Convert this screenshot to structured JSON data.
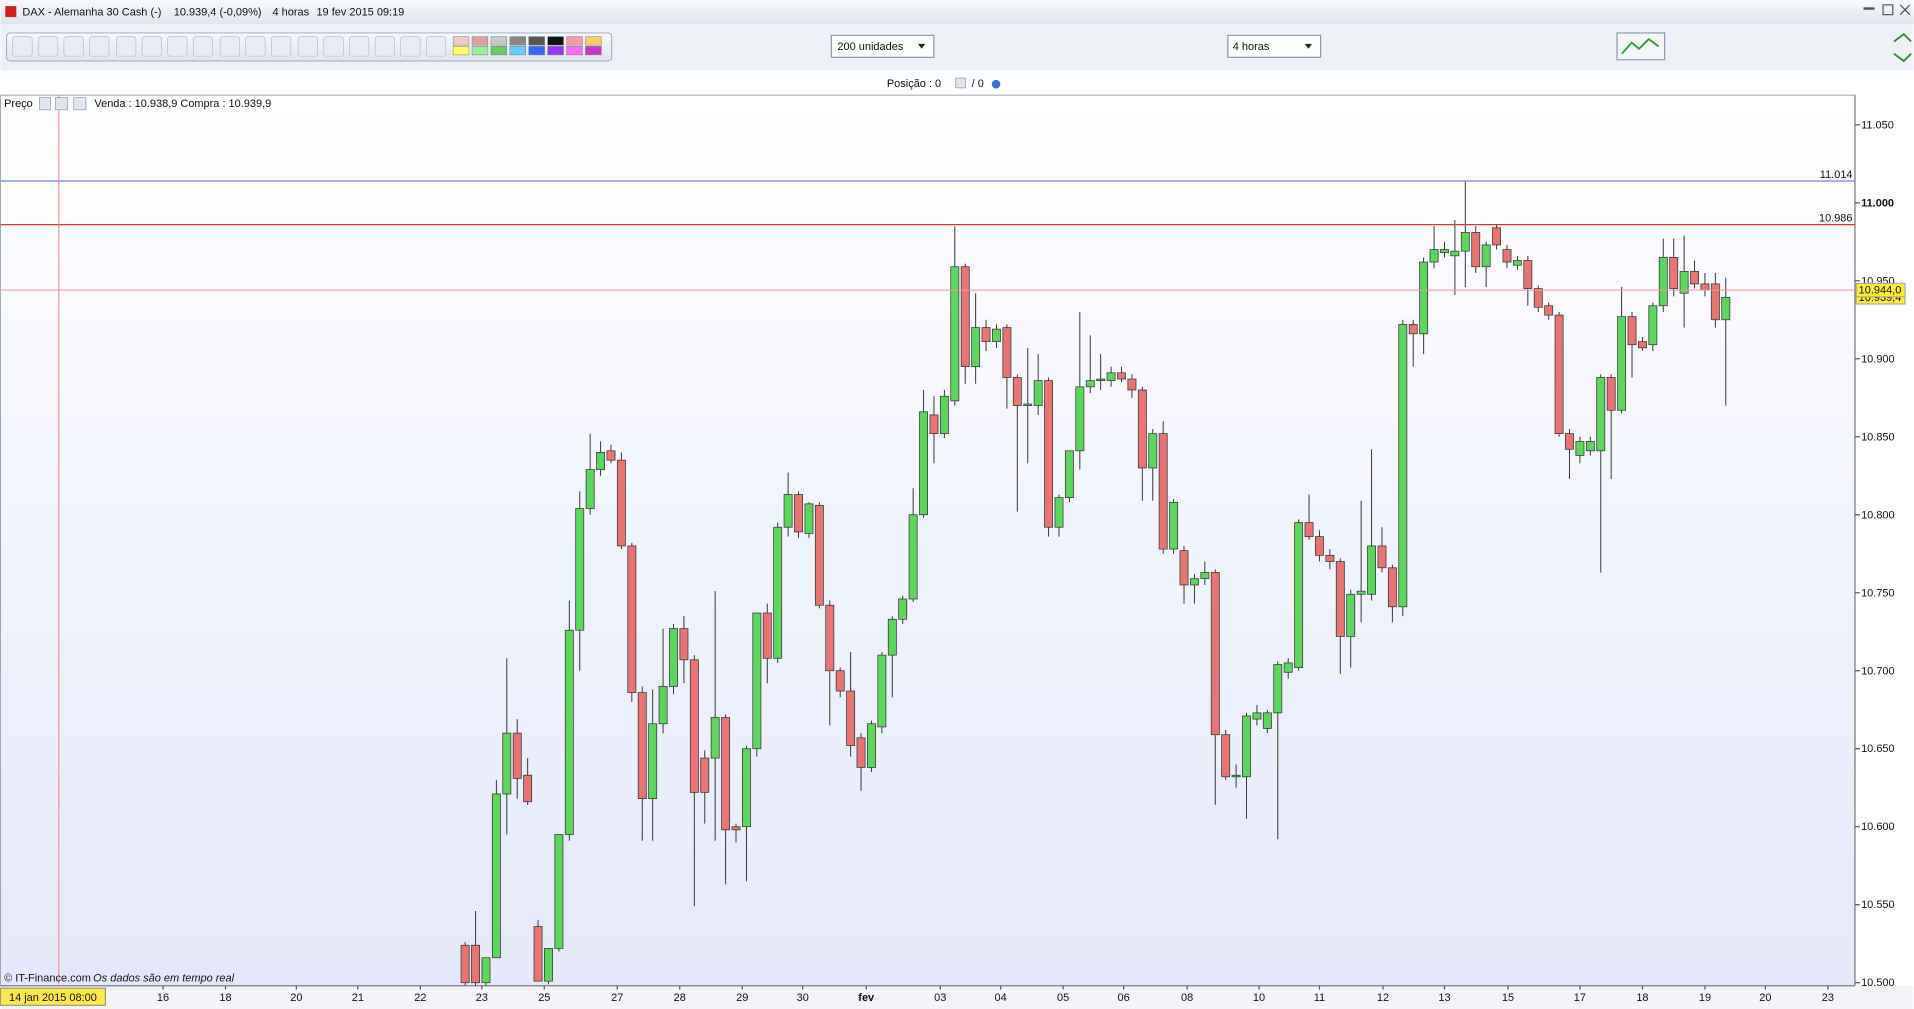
{
  "window": {
    "title": "DAX - Alemanha 30 Cash (-)",
    "quote": "10.939,4 (-0,09%)",
    "timeframe": "4 horas",
    "datetime": "19 fev 2015 09:19"
  },
  "toolbar": {
    "units": "200 unidades",
    "period": "4 horas"
  },
  "position": [
    "Posição : 0",
    "/ 0"
  ],
  "footer": {
    "source": "© IT-Finance.com",
    "note": "Os dados são em tempo real"
  },
  "chart_data": {
    "type": "candlestick",
    "legend_label": "Preço",
    "bid_ask": "Venda : 10.938,9 Compra : 10.939,9",
    "up_color": "#5cd65c",
    "down_color": "#e87474",
    "xlim": [
      -44.6,
      133.4
    ],
    "xticks": [
      {
        "value": -29.0,
        "label": "16"
      },
      {
        "value": -23.0,
        "label": "18"
      },
      {
        "value": -16.2,
        "label": "20"
      },
      {
        "value": -10.3,
        "label": "21"
      },
      {
        "value": -4.3,
        "label": "22"
      },
      {
        "value": 1.6,
        "label": "23"
      },
      {
        "value": 7.6,
        "label": "25"
      },
      {
        "value": 14.6,
        "label": "27"
      },
      {
        "value": 20.6,
        "label": "28"
      },
      {
        "value": 26.6,
        "label": "29"
      },
      {
        "value": 32.4,
        "label": "30"
      },
      {
        "value": 38.5,
        "label": "fev"
      },
      {
        "value": 45.6,
        "label": "03"
      },
      {
        "value": 51.4,
        "label": "04"
      },
      {
        "value": 57.4,
        "label": "05"
      },
      {
        "value": 63.2,
        "label": "06"
      },
      {
        "value": 69.3,
        "label": "08"
      },
      {
        "value": 76.2,
        "label": "10"
      },
      {
        "value": 82.0,
        "label": "11"
      },
      {
        "value": 88.1,
        "label": "12"
      },
      {
        "value": 94.0,
        "label": "13"
      },
      {
        "value": 100.1,
        "label": "15"
      },
      {
        "value": 107.0,
        "label": "17"
      },
      {
        "value": 113.0,
        "label": "18"
      },
      {
        "value": 119.0,
        "label": "19"
      },
      {
        "value": 124.8,
        "label": "20"
      },
      {
        "value": 130.8,
        "label": "23"
      }
    ],
    "crosshair": {
      "x": -39.0,
      "label": "14 jan 2015 08:00"
    },
    "ylim": [
      10498,
      11069
    ],
    "yticks": [
      {
        "value": 10500,
        "label": "10.500"
      },
      {
        "value": 10550,
        "label": "10.550"
      },
      {
        "value": 10600,
        "label": "10.600"
      },
      {
        "value": 10650,
        "label": "10.650"
      },
      {
        "value": 10700,
        "label": "10.700"
      },
      {
        "value": 10750,
        "label": "10.750"
      },
      {
        "value": 10800,
        "label": "10.800"
      },
      {
        "value": 10850,
        "label": "10.850"
      },
      {
        "value": 10900,
        "label": "10.900"
      },
      {
        "value": 10950,
        "label": "10.950"
      },
      {
        "value": 11000,
        "label": "11.000"
      },
      {
        "value": 11050,
        "label": "11.050"
      }
    ],
    "levels": [
      {
        "value": 11014,
        "label": "11.014",
        "color": "#7088dd"
      },
      {
        "value": 10986,
        "label": "10.986",
        "color": "#e03030"
      }
    ],
    "last_prices": [
      {
        "value": 10939.4,
        "label": "10.939,4"
      },
      {
        "value": 10944,
        "label": "10.944,0"
      }
    ],
    "ohlc": [
      [
        10524,
        10526,
        10498,
        10500
      ],
      [
        10524,
        10546,
        10498,
        10500
      ],
      [
        10500,
        10516,
        10498,
        10516
      ],
      [
        10516,
        10630,
        10516,
        10621
      ],
      [
        10621,
        10708,
        10595,
        10660
      ],
      [
        10660,
        10669,
        10618,
        10631
      ],
      [
        10633,
        10644,
        10614,
        10616
      ],
      [
        10536,
        10540,
        10501,
        10501
      ],
      [
        10501,
        10522,
        10499,
        10522
      ],
      [
        10522,
        10595,
        10520,
        10595
      ],
      [
        10595,
        10745,
        10591,
        10726
      ],
      [
        10726,
        10815,
        10700,
        10804
      ],
      [
        10804,
        10852,
        10800,
        10829
      ],
      [
        10829,
        10847,
        10825,
        10840
      ],
      [
        10841,
        10845,
        10833,
        10835
      ],
      [
        10835,
        10840,
        10778,
        10780
      ],
      [
        10780,
        10782,
        10680,
        10686
      ],
      [
        10686,
        10690,
        10591,
        10618
      ],
      [
        10618,
        10688,
        10591,
        10666
      ],
      [
        10666,
        10727,
        10660,
        10690
      ],
      [
        10690,
        10730,
        10685,
        10727
      ],
      [
        10727,
        10735,
        10692,
        10707
      ],
      [
        10707,
        10710,
        10549,
        10622
      ],
      [
        10644,
        10649,
        10602,
        10622
      ],
      [
        10644,
        10751,
        10591,
        10670
      ],
      [
        10670,
        10672,
        10563,
        10598
      ],
      [
        10600,
        10602,
        10590,
        10598
      ],
      [
        10600,
        10652,
        10565,
        10650
      ],
      [
        10650,
        10737,
        10645,
        10737
      ],
      [
        10737,
        10743,
        10692,
        10708
      ],
      [
        10708,
        10795,
        10705,
        10792
      ],
      [
        10792,
        10827,
        10786,
        10813
      ],
      [
        10813,
        10815,
        10785,
        10789
      ],
      [
        10788,
        10808,
        10785,
        10807
      ],
      [
        10806,
        10808,
        10740,
        10742
      ],
      [
        10742,
        10745,
        10665,
        10700
      ],
      [
        10700,
        10702,
        10683,
        10687
      ],
      [
        10687,
        10712,
        10645,
        10652
      ],
      [
        10657,
        10660,
        10623,
        10638
      ],
      [
        10638,
        10668,
        10635,
        10666
      ],
      [
        10664,
        10712,
        10660,
        10710
      ],
      [
        10710,
        10735,
        10683,
        10733
      ],
      [
        10733,
        10748,
        10730,
        10746
      ],
      [
        10746,
        10817,
        10744,
        10800
      ],
      [
        10800,
        10880,
        10798,
        10866
      ],
      [
        10864,
        10876,
        10833,
        10852
      ],
      [
        10852,
        10880,
        10849,
        10876
      ],
      [
        10873,
        10985,
        10870,
        10959
      ],
      [
        10959,
        10961,
        10884,
        10895
      ],
      [
        10895,
        10942,
        10884,
        10920
      ],
      [
        10920,
        10925,
        10905,
        10911
      ],
      [
        10911,
        10922,
        10907,
        10919
      ],
      [
        10920,
        10922,
        10868,
        10888
      ],
      [
        10888,
        10890,
        10802,
        10870
      ],
      [
        10870,
        10907,
        10833,
        10871
      ],
      [
        10870,
        10903,
        10864,
        10886
      ],
      [
        10886,
        10888,
        10786,
        10792
      ],
      [
        10792,
        10813,
        10786,
        10811
      ],
      [
        10811,
        10841,
        10808,
        10841
      ],
      [
        10841,
        10930,
        10829,
        10882
      ],
      [
        10882,
        10915,
        10878,
        10886
      ],
      [
        10886,
        10903,
        10880,
        10887
      ],
      [
        10886,
        10895,
        10882,
        10891
      ],
      [
        10891,
        10895,
        10885,
        10887
      ],
      [
        10887,
        10890,
        10875,
        10880
      ],
      [
        10880,
        10882,
        10809,
        10830
      ],
      [
        10830,
        10855,
        10809,
        10852
      ],
      [
        10852,
        10860,
        10775,
        10778
      ],
      [
        10778,
        10810,
        10775,
        10808
      ],
      [
        10777,
        10780,
        10743,
        10755
      ],
      [
        10755,
        10762,
        10743,
        10759
      ],
      [
        10759,
        10770,
        10755,
        10763
      ],
      [
        10763,
        10765,
        10614,
        10659
      ],
      [
        10659,
        10662,
        10630,
        10632
      ],
      [
        10632,
        10640,
        10625,
        10633
      ],
      [
        10632,
        10673,
        10605,
        10671
      ],
      [
        10669,
        10678,
        10665,
        10673
      ],
      [
        10663,
        10675,
        10660,
        10673
      ],
      [
        10673,
        10706,
        10592,
        10704
      ],
      [
        10699,
        10708,
        10695,
        10705
      ],
      [
        10702,
        10797,
        10700,
        10795
      ],
      [
        10795,
        10813,
        10784,
        10786
      ],
      [
        10786,
        10790,
        10770,
        10774
      ],
      [
        10774,
        10778,
        10765,
        10770
      ],
      [
        10770,
        10772,
        10698,
        10722
      ],
      [
        10722,
        10752,
        10702,
        10749
      ],
      [
        10749,
        10809,
        10731,
        10751
      ],
      [
        10749,
        10842,
        10745,
        10780
      ],
      [
        10780,
        10792,
        10763,
        10766
      ],
      [
        10766,
        10768,
        10731,
        10741
      ],
      [
        10741,
        10925,
        10735,
        10922
      ],
      [
        10922,
        10925,
        10895,
        10916
      ],
      [
        10916,
        10965,
        10903,
        10962
      ],
      [
        10962,
        10985,
        10958,
        10970
      ],
      [
        10968,
        10975,
        10965,
        10970
      ],
      [
        10966,
        10989,
        10941,
        10969
      ],
      [
        10969,
        11014,
        10946,
        10981
      ],
      [
        10981,
        10985,
        10955,
        10959
      ],
      [
        10959,
        10975,
        10946,
        10973
      ],
      [
        10984,
        10986,
        10970,
        10973
      ],
      [
        10970,
        10973,
        10958,
        10962
      ],
      [
        10960,
        10966,
        10957,
        10963
      ],
      [
        10963,
        10966,
        10934,
        10945
      ],
      [
        10945,
        10947,
        10930,
        10933
      ],
      [
        10934,
        10936,
        10925,
        10928
      ],
      [
        10928,
        10930,
        10850,
        10852
      ],
      [
        10852,
        10855,
        10823,
        10842
      ],
      [
        10838,
        10850,
        10833,
        10847
      ],
      [
        10841,
        10850,
        10838,
        10847
      ],
      [
        10841,
        10890,
        10763,
        10888
      ],
      [
        10888,
        10890,
        10823,
        10867
      ],
      [
        10867,
        10946,
        10865,
        10927
      ],
      [
        10927,
        10930,
        10888,
        10909
      ],
      [
        10911,
        10914,
        10905,
        10907
      ],
      [
        10909,
        10936,
        10905,
        10934
      ],
      [
        10934,
        10977,
        10930,
        10965
      ],
      [
        10965,
        10977,
        10940,
        10945
      ],
      [
        10942,
        10979,
        10920,
        10956
      ],
      [
        10956,
        10963,
        10945,
        10948
      ],
      [
        10948,
        10955,
        10940,
        10944
      ],
      [
        10948,
        10955,
        10920,
        10925
      ],
      [
        10925,
        10952,
        10870,
        10939.4
      ]
    ]
  }
}
